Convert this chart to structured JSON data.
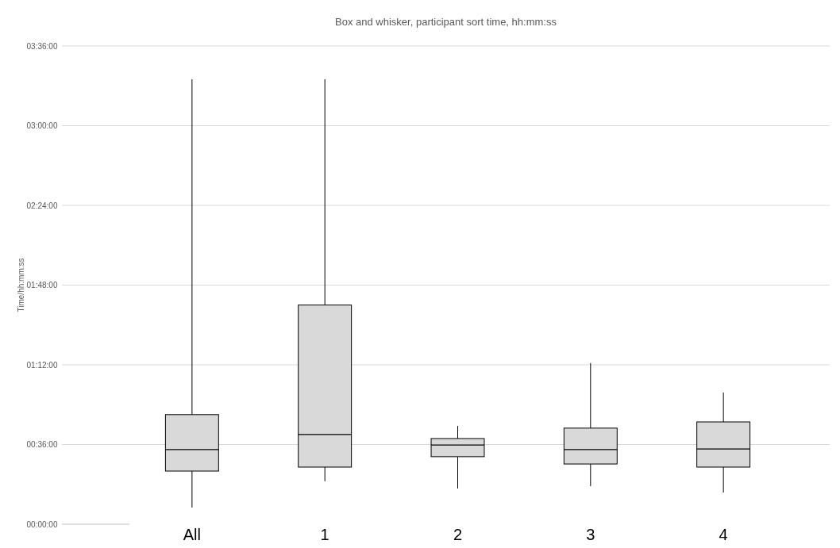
{
  "chart_data": {
    "type": "box",
    "title": "Box and whisker, participant sort time, hh:mm:ss",
    "ylabel": "Time/hh:mm:ss",
    "categories": [
      "All",
      "1",
      "2",
      "3",
      "4"
    ],
    "boxes": [
      {
        "low": 7.5,
        "q1": 24,
        "median": 33.7,
        "q3": 49.5,
        "high": 201
      },
      {
        "low": 19.4,
        "q1": 25.8,
        "median": 40.5,
        "q3": 99,
        "high": 201
      },
      {
        "low": 16.1,
        "q1": 30.5,
        "median": 35.8,
        "q3": 38.7,
        "high": 44.4
      },
      {
        "low": 17.2,
        "q1": 27.2,
        "median": 33.7,
        "q3": 43.4,
        "high": 72.8
      },
      {
        "low": 14.3,
        "q1": 25.8,
        "median": 34,
        "q3": 46.2,
        "high": 59.5
      }
    ],
    "color": "#d9d9d9",
    "ylim": [
      0,
      216
    ],
    "yticks": [
      {
        "value": 0,
        "label": "00:00:00"
      },
      {
        "value": 36,
        "label": "00:36:00"
      },
      {
        "value": 72,
        "label": "01:12:00"
      },
      {
        "value": 108,
        "label": "01:48:00"
      },
      {
        "value": 144,
        "label": "02:24:00"
      },
      {
        "value": 180,
        "label": "03:00:00"
      },
      {
        "value": 216,
        "label": "03:36:00"
      }
    ],
    "grid": true
  }
}
